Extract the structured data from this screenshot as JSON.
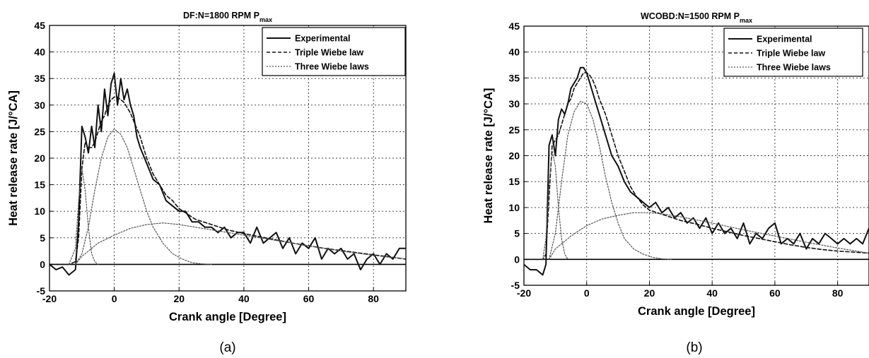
{
  "chart_data": [
    {
      "type": "line",
      "title": "DF:N=1800 RPM P",
      "title_subscript": "max",
      "xlabel": "Crank angle [Degree]",
      "ylabel": "Heat release rate [J/°CA]",
      "xlim": [
        -20,
        90
      ],
      "ylim": [
        -5,
        45
      ],
      "xticks": [
        -20,
        0,
        20,
        40,
        60,
        80
      ],
      "yticks": [
        -5,
        0,
        5,
        10,
        15,
        20,
        25,
        30,
        35,
        40,
        45
      ],
      "grid": true,
      "legend_position": "top-right",
      "caption": "(a)",
      "series": [
        {
          "name": "Experimental",
          "style": "solid",
          "x": [
            -20,
            -18,
            -16,
            -14,
            -12,
            -11,
            -10,
            -9,
            -8,
            -7,
            -6,
            -5,
            -4,
            -3,
            -2,
            -1,
            0,
            1,
            2,
            3,
            4,
            5,
            6,
            7,
            8,
            10,
            12,
            14,
            16,
            18,
            20,
            22,
            24,
            26,
            28,
            30,
            32,
            34,
            36,
            38,
            40,
            42,
            44,
            46,
            48,
            50,
            52,
            54,
            56,
            58,
            60,
            62,
            64,
            66,
            68,
            70,
            72,
            74,
            76,
            78,
            80,
            82,
            84,
            86,
            88,
            90
          ],
          "y": [
            0,
            -1,
            -0.5,
            -2,
            -1,
            8,
            26,
            24,
            21,
            26,
            22,
            30,
            25,
            33,
            28,
            34,
            36,
            30,
            35,
            31,
            33,
            30,
            28,
            24,
            22,
            19,
            16,
            15,
            12,
            11,
            10,
            10,
            8,
            8,
            7,
            7,
            6,
            7,
            5,
            6,
            6,
            4,
            7,
            4,
            5,
            6,
            3,
            5,
            2,
            4,
            3,
            5,
            1,
            3,
            2,
            3,
            1,
            2,
            -1,
            1,
            2,
            0,
            2,
            1,
            3,
            3
          ]
        },
        {
          "name": "Triple Wiebe law",
          "style": "dashed",
          "x": [
            -20,
            -14,
            -12,
            -11,
            -10,
            -9,
            -8,
            -7,
            -6,
            -5,
            -4,
            -3,
            -2,
            -1,
            0,
            1,
            2,
            3,
            4,
            5,
            6,
            8,
            10,
            12,
            14,
            16,
            18,
            20,
            25,
            30,
            35,
            40,
            45,
            50,
            55,
            60,
            65,
            70,
            75,
            80,
            85,
            90
          ],
          "y": [
            0,
            0,
            0.5,
            5,
            18,
            23,
            22,
            22,
            23,
            25,
            27,
            28,
            30,
            31,
            31.5,
            31.5,
            31,
            30.5,
            29.5,
            28.5,
            27,
            24,
            20,
            17,
            15,
            13,
            12,
            10.5,
            8.5,
            7.5,
            6.5,
            5.8,
            5.2,
            4.6,
            4,
            3.5,
            3,
            2.6,
            2.2,
            1.8,
            1.4,
            1.0
          ]
        },
        {
          "name": "Three Wiebe laws",
          "style": "dotted",
          "sub": [
            {
              "x": [
                -14,
                -12,
                -11,
                -10,
                -9,
                -8,
                -7,
                -6,
                -5
              ],
              "y": [
                0,
                3,
                12,
                18,
                14,
                7,
                2,
                0.5,
                0
              ]
            },
            {
              "x": [
                -12,
                -10,
                -8,
                -6,
                -4,
                -2,
                0,
                2,
                4,
                6,
                8,
                10,
                12,
                15,
                18,
                21,
                24,
                27,
                30
              ],
              "y": [
                0,
                2,
                7,
                14,
                20,
                24,
                25.5,
                24.5,
                22,
                18,
                14,
                10,
                7,
                4,
                2,
                1,
                0.3,
                0.1,
                0
              ]
            },
            {
              "x": [
                -12,
                -10,
                -5,
                0,
                5,
                10,
                15,
                20,
                30,
                40,
                50,
                60,
                70,
                80,
                90
              ],
              "y": [
                0,
                1.5,
                4,
                5.5,
                6.8,
                7.5,
                7.8,
                7.5,
                6.5,
                5.5,
                4.5,
                3.5,
                2.5,
                1.7,
                1.0
              ]
            }
          ]
        }
      ]
    },
    {
      "type": "line",
      "title": "WCOBD:N=1500 RPM P",
      "title_subscript": "max",
      "xlabel": "Crank angle [Degree]",
      "ylabel": "Heat release rate [J/°CA]",
      "xlim": [
        -20,
        90
      ],
      "ylim": [
        -5,
        45
      ],
      "xticks": [
        -20,
        0,
        20,
        40,
        60,
        80
      ],
      "yticks": [
        -5,
        0,
        5,
        10,
        15,
        20,
        25,
        30,
        35,
        40,
        45
      ],
      "grid": true,
      "legend_position": "top-right",
      "caption": "(b)",
      "series": [
        {
          "name": "Experimental",
          "style": "solid",
          "x": [
            -20,
            -18,
            -16,
            -14,
            -13,
            -12,
            -11,
            -10,
            -9,
            -8,
            -7,
            -6,
            -5,
            -4,
            -3,
            -2,
            -1,
            0,
            1,
            2,
            3,
            4,
            6,
            8,
            10,
            12,
            14,
            16,
            18,
            20,
            22,
            24,
            26,
            28,
            30,
            32,
            34,
            36,
            38,
            40,
            42,
            44,
            46,
            48,
            50,
            52,
            54,
            56,
            58,
            60,
            62,
            64,
            66,
            68,
            70,
            72,
            74,
            76,
            78,
            80,
            82,
            84,
            86,
            88,
            90
          ],
          "y": [
            -1,
            -2,
            -2,
            -3,
            -1,
            22,
            24,
            20,
            27,
            29,
            28,
            30,
            33,
            34,
            35,
            37,
            37,
            36,
            34,
            32,
            30,
            28,
            24,
            20,
            18,
            15,
            13,
            12,
            11,
            10,
            11,
            9,
            10,
            8,
            9,
            7,
            8,
            6,
            8,
            5,
            7,
            5,
            6,
            4,
            7,
            3,
            5,
            4,
            6,
            7,
            3,
            4,
            3,
            5,
            2,
            4,
            3,
            5,
            4,
            3,
            4,
            3,
            4,
            3,
            6
          ]
        },
        {
          "name": "Triple Wiebe law",
          "style": "dashed",
          "x": [
            -20,
            -14,
            -13,
            -12,
            -11,
            -10,
            -9,
            -8,
            -7,
            -6,
            -5,
            -4,
            -3,
            -2,
            -1,
            0,
            1,
            2,
            3,
            4,
            6,
            8,
            10,
            12,
            14,
            16,
            18,
            20,
            25,
            30,
            35,
            40,
            45,
            50,
            55,
            60,
            65,
            70,
            75,
            80,
            85,
            90
          ],
          "y": [
            0,
            0,
            1,
            12,
            22,
            23,
            24,
            26,
            28,
            30,
            31,
            33,
            34,
            35,
            36,
            36,
            35.5,
            34.5,
            33,
            31,
            28,
            24,
            20,
            17,
            14,
            12,
            10.5,
            9.5,
            8.5,
            7.5,
            6.8,
            6,
            5.3,
            4.6,
            4,
            3.4,
            2.8,
            2.3,
            1.9,
            1.6,
            1.4,
            1.2
          ]
        },
        {
          "name": "Three Wiebe laws",
          "style": "dotted",
          "sub": [
            {
              "x": [
                -14,
                -13,
                -12,
                -11,
                -10,
                -9,
                -8,
                -7,
                -6
              ],
              "y": [
                0,
                4,
                14,
                21,
                18,
                10,
                4,
                1,
                0
              ]
            },
            {
              "x": [
                -12,
                -10,
                -8,
                -6,
                -4,
                -2,
                0,
                2,
                4,
                6,
                8,
                10,
                12,
                15,
                18,
                21,
                24,
                27
              ],
              "y": [
                0,
                5,
                15,
                24,
                28.5,
                30.5,
                30,
                27,
                22,
                16,
                11,
                7,
                4,
                2,
                1,
                0.4,
                0.1,
                0
              ]
            },
            {
              "x": [
                -12,
                -10,
                -5,
                0,
                5,
                10,
                15,
                20,
                25,
                30,
                40,
                50,
                60,
                70,
                80,
                90
              ],
              "y": [
                0,
                2,
                4.5,
                6.5,
                7.8,
                8.5,
                9,
                9,
                8.7,
                8.2,
                7,
                5.7,
                4.5,
                3.3,
                2.2,
                1.2
              ]
            }
          ]
        }
      ]
    }
  ]
}
